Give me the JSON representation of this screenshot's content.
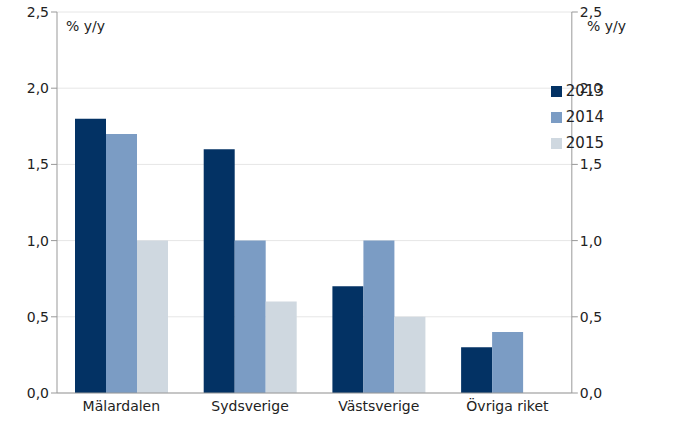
{
  "chart_data": {
    "type": "bar",
    "y_label": "% y/y",
    "y2_label": "% y/y",
    "categories": [
      "Mälardalen",
      "Sydsverige",
      "Västsverige",
      "Övriga riket"
    ],
    "series": [
      {
        "name": "2013",
        "color": "#033264",
        "values": [
          1.8,
          1.6,
          0.7,
          0.3
        ]
      },
      {
        "name": "2014",
        "color": "#7b9cc4",
        "values": [
          1.7,
          1.0,
          1.0,
          0.4
        ]
      },
      {
        "name": "2015",
        "color": "#cfd8e0",
        "values": [
          1.0,
          0.6,
          0.5,
          null
        ]
      }
    ],
    "ylim": [
      0,
      2.5
    ],
    "yticks": [
      {
        "value": 0,
        "label": "0,0"
      },
      {
        "value": 0.5,
        "label": "0,5"
      },
      {
        "value": 1.0,
        "label": "1,0"
      },
      {
        "value": 1.5,
        "label": "1,5"
      },
      {
        "value": 2.0,
        "label": "2,0"
      },
      {
        "value": 2.5,
        "label": "2,5"
      }
    ],
    "y2lim": [
      0,
      2.5
    ],
    "y2ticks": [
      {
        "value": 0,
        "label": "0,0"
      },
      {
        "value": 0.5,
        "label": "0,5"
      },
      {
        "value": 1.0,
        "label": "1,0"
      },
      {
        "value": 1.5,
        "label": "1,5"
      },
      {
        "value": 2.0,
        "label": "2,0"
      },
      {
        "value": 2.5,
        "label": "2,5"
      }
    ],
    "grid": true,
    "legend": "upper right"
  }
}
